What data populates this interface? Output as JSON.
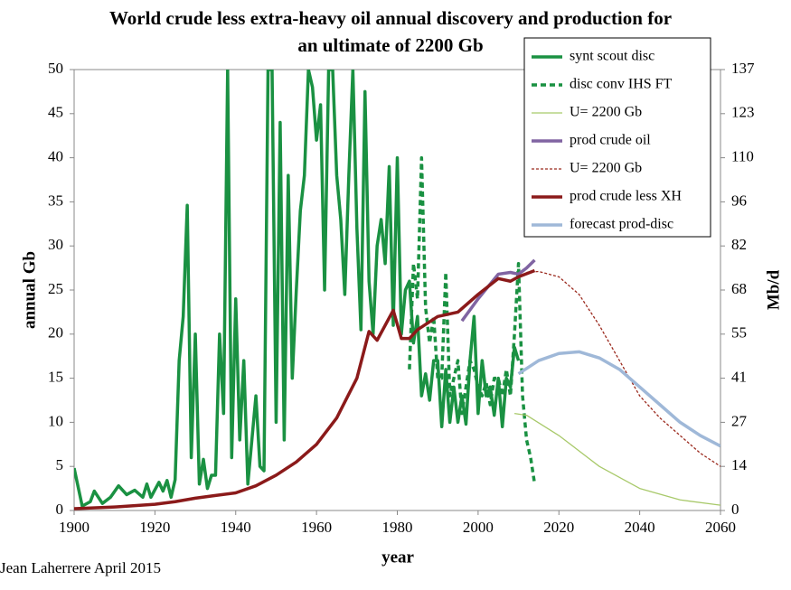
{
  "chart_data": {
    "type": "line",
    "title": [
      "World crude less extra-heavy oil annual discovery and production for",
      "an ultimate of 2200 Gb"
    ],
    "xlabel": "year",
    "ylabel": "annual  Gb",
    "y2label": "Mb/d",
    "source": "Jean Laherrere April 2015",
    "xlim": [
      1900,
      2060
    ],
    "xticks": [
      1900,
      1920,
      1940,
      1960,
      1980,
      2000,
      2020,
      2040,
      2060
    ],
    "ylim": [
      0,
      50
    ],
    "yticks": [
      0,
      5,
      10,
      15,
      20,
      25,
      30,
      35,
      40,
      45,
      50
    ],
    "y2lim": [
      0,
      137
    ],
    "y2ticks": [
      0,
      {
        "value": 13.7,
        "label": "14"
      },
      {
        "value": 27.4,
        "label": "27"
      },
      {
        "value": 41.1,
        "label": "41"
      },
      {
        "value": 54.8,
        "label": "55"
      },
      {
        "value": 68.5,
        "label": "68"
      },
      {
        "value": 82.2,
        "label": "82"
      },
      {
        "value": 95.9,
        "label": "96"
      },
      {
        "value": 109.6,
        "label": "110"
      },
      {
        "value": 123.3,
        "label": "123"
      },
      137
    ],
    "legend": "upper right",
    "grid": false,
    "series": [
      {
        "name": "synt scout disc",
        "color": "#1a9142",
        "style": "solid",
        "x": [
          1900,
          1902,
          1904,
          1905,
          1907,
          1909,
          1911,
          1913,
          1915,
          1917,
          1918,
          1919,
          1921,
          1922,
          1923,
          1924,
          1925,
          1926,
          1927,
          1928,
          1929,
          1930,
          1931,
          1932,
          1933,
          1934,
          1935,
          1936,
          1937,
          1938,
          1939,
          1940,
          1941,
          1942,
          1943,
          1944,
          1945,
          1946,
          1947,
          1948,
          1949,
          1950,
          1951,
          1952,
          1953,
          1954,
          1955,
          1956,
          1957,
          1958,
          1959,
          1960,
          1961,
          1962,
          1963,
          1964,
          1965,
          1966,
          1967,
          1968,
          1969,
          1970,
          1971,
          1972,
          1973,
          1974,
          1975,
          1976,
          1977,
          1978,
          1979,
          1980,
          1981,
          1982,
          1983,
          1984,
          1985,
          1986,
          1987,
          1988,
          1989,
          1990,
          1991,
          1992,
          1993,
          1994,
          1995,
          1996,
          1997,
          1998,
          1999,
          2000,
          2001,
          2002,
          2003,
          2004,
          2005,
          2006,
          2007,
          2008,
          2009,
          2010
        ],
        "values": [
          4.8,
          0.5,
          1,
          2.2,
          0.8,
          1.5,
          2.8,
          1.8,
          2.3,
          1.5,
          3,
          1.5,
          3.2,
          2.2,
          3.4,
          1.5,
          3.5,
          17,
          22,
          34.6,
          6,
          20,
          3,
          5.8,
          2.5,
          4,
          4,
          20,
          11,
          50,
          6,
          24,
          8,
          17,
          3,
          8,
          13,
          5,
          4.5,
          50,
          50,
          10,
          44,
          8,
          38,
          15,
          25,
          34,
          38,
          50,
          48,
          42,
          46,
          25,
          50,
          50,
          38,
          33,
          24.5,
          38,
          50,
          32,
          20.5,
          47.5,
          26,
          20,
          30,
          33,
          28,
          39,
          21,
          40,
          20,
          25,
          26,
          19,
          22,
          13,
          15.5,
          12.5,
          17,
          17,
          9.5,
          16,
          10,
          14,
          10,
          13,
          9.8,
          17,
          22,
          11,
          17,
          13,
          14,
          10.8,
          15,
          9.5,
          15,
          14,
          18.5,
          17
        ]
      },
      {
        "name": "disc conv IHS FT",
        "color": "#1a9142",
        "style": "dashed",
        "x": [
          1983,
          1984,
          1985,
          1986,
          1987,
          1988,
          1989,
          1990,
          1991,
          1992,
          1993,
          1994,
          1995,
          1996,
          1997,
          1998,
          1999,
          2000,
          2001,
          2002,
          2003,
          2004,
          2005,
          2006,
          2007,
          2008,
          2009,
          2010,
          2011,
          2012,
          2013,
          2014
        ],
        "values": [
          16,
          28,
          24,
          40,
          23,
          19,
          22,
          15,
          15,
          27,
          13,
          15,
          17,
          11,
          14,
          17,
          16,
          14,
          13,
          14.5,
          12,
          15,
          15,
          13,
          16,
          13,
          20,
          28,
          13,
          8,
          6,
          3
        ]
      },
      {
        "name": "U= 2200 Gb",
        "color": "#a8c96a",
        "style": "thin",
        "x": [
          2009,
          2012,
          2020,
          2030,
          2040,
          2050,
          2060
        ],
        "values": [
          11,
          10.8,
          8.5,
          5,
          2.5,
          1.2,
          0.6
        ]
      },
      {
        "name": "prod crude oil",
        "color": "#8064a2",
        "style": "solid",
        "x": [
          1996,
          2000,
          2005,
          2008,
          2010,
          2012,
          2014
        ],
        "values": [
          21.5,
          24,
          26.8,
          27,
          26.8,
          27.5,
          28.4
        ]
      },
      {
        "name": "U= 2200 Gb",
        "color": "#9b2a1e",
        "style": "thin-dashed",
        "x": [
          2012,
          2015,
          2020,
          2025,
          2030,
          2035,
          2040,
          2045,
          2050,
          2055,
          2060
        ],
        "values": [
          27,
          27.1,
          26.5,
          24.5,
          21,
          17,
          13,
          10.5,
          8.5,
          6.5,
          5
        ]
      },
      {
        "name": "prod crude less XH",
        "color": "#8b1a1a",
        "style": "solid",
        "x": [
          1900,
          1910,
          1920,
          1925,
          1930,
          1935,
          1940,
          1945,
          1950,
          1955,
          1960,
          1965,
          1970,
          1973,
          1975,
          1979,
          1981,
          1983,
          1985,
          1990,
          1995,
          2000,
          2005,
          2008,
          2010,
          2014
        ],
        "values": [
          0.2,
          0.4,
          0.7,
          1,
          1.4,
          1.7,
          2,
          2.8,
          4,
          5.5,
          7.5,
          10.5,
          15,
          20.3,
          19.3,
          22.7,
          19.5,
          19.5,
          20.5,
          22,
          22.5,
          24.5,
          26.3,
          26,
          26.5,
          27.2
        ]
      },
      {
        "name": "forecast prod-disc",
        "color": "#9fb8d8",
        "style": "solid",
        "x": [
          2010,
          2015,
          2020,
          2025,
          2030,
          2035,
          2040,
          2045,
          2050,
          2055,
          2060
        ],
        "values": [
          15.5,
          17,
          17.8,
          18,
          17.3,
          16,
          14,
          12,
          10,
          8.5,
          7.3
        ]
      }
    ]
  }
}
